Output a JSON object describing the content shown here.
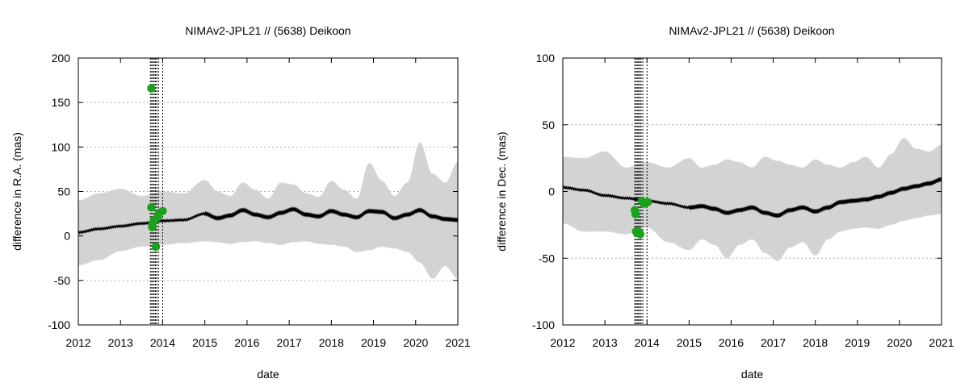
{
  "chart_data": [
    {
      "type": "line",
      "title": "NIMAv2-JPL21 // (5638) Deikoon",
      "xlabel": "date",
      "ylabel": "difference in R.A. (mas)",
      "xlim": [
        2012,
        2021
      ],
      "ylim": [
        -100,
        200
      ],
      "x_ticks": [
        "2012",
        "2013",
        "2014",
        "2015",
        "2016",
        "2017",
        "2018",
        "2019",
        "2020",
        "2021"
      ],
      "y_ticks": [
        "-100",
        "-50",
        "0",
        "50",
        "100",
        "150",
        "200"
      ],
      "grid": "horizontal dotted",
      "colors": {
        "band": "#d3d3d3",
        "line": "#000000",
        "points": "#1aa31a"
      },
      "series": [
        {
          "x": [
            2012.0,
            2012.5,
            2013.0,
            2013.5,
            2014.0,
            2014.5,
            2015.0,
            2015.3,
            2015.6,
            2015.9,
            2016.2,
            2016.5,
            2016.8,
            2017.1,
            2017.4,
            2017.7,
            2018.0,
            2018.3,
            2018.6,
            2018.9,
            2019.2,
            2019.5,
            2019.8,
            2020.1,
            2020.4,
            2020.7,
            2021.0
          ],
          "center": [
            4,
            8,
            11,
            14,
            17,
            18,
            25,
            20,
            23,
            29,
            24,
            21,
            26,
            30,
            24,
            22,
            28,
            24,
            21,
            28,
            27,
            20,
            24,
            29,
            22,
            19,
            18
          ],
          "lower": [
            -33,
            -27,
            -17,
            -12,
            -10,
            -8,
            -6,
            -7,
            -9,
            -7,
            -6,
            -8,
            -10,
            -7,
            -6,
            -9,
            -10,
            -12,
            -18,
            -16,
            -12,
            -14,
            -18,
            -30,
            -48,
            -34,
            -48
          ],
          "upper": [
            40,
            48,
            53,
            45,
            50,
            48,
            63,
            50,
            45,
            60,
            52,
            42,
            60,
            58,
            48,
            44,
            62,
            52,
            42,
            82,
            62,
            45,
            60,
            105,
            70,
            60,
            83
          ]
        }
      ],
      "observations": {
        "x": [
          2013.73,
          2013.73,
          2013.75,
          2013.76,
          2013.8,
          2013.84,
          2013.88,
          2013.92,
          2014.0
        ],
        "y": [
          166,
          32,
          10,
          14,
          18,
          -12,
          21,
          26,
          28
        ]
      },
      "vlines": [
        2013.71,
        2013.74,
        2013.77,
        2013.8,
        2013.83,
        2013.86,
        2013.9,
        2014.0
      ]
    },
    {
      "type": "line",
      "title": "NIMAv2-JPL21 // (5638) Deikoon",
      "xlabel": "date",
      "ylabel": "difference in Dec. (mas)",
      "xlim": [
        2012,
        2021
      ],
      "ylim": [
        -100,
        100
      ],
      "x_ticks": [
        "2012",
        "2013",
        "2014",
        "2015",
        "2016",
        "2017",
        "2018",
        "2019",
        "2020",
        "2021"
      ],
      "y_ticks": [
        "-100",
        "-50",
        "0",
        "50",
        "100"
      ],
      "grid": "horizontal dotted",
      "colors": {
        "band": "#d3d3d3",
        "line": "#000000",
        "points": "#1aa31a"
      },
      "series": [
        {
          "x": [
            2012.0,
            2012.5,
            2013.0,
            2013.5,
            2014.0,
            2014.5,
            2015.0,
            2015.3,
            2015.6,
            2015.9,
            2016.2,
            2016.5,
            2016.8,
            2017.1,
            2017.4,
            2017.7,
            2018.0,
            2018.3,
            2018.6,
            2018.9,
            2019.2,
            2019.5,
            2019.8,
            2020.1,
            2020.4,
            2020.7,
            2021.0
          ],
          "center": [
            3,
            1,
            -3,
            -5,
            -7,
            -9,
            -12,
            -11,
            -13,
            -16,
            -14,
            -12,
            -16,
            -18,
            -14,
            -12,
            -15,
            -12,
            -8,
            -7,
            -6,
            -4,
            -1,
            2,
            4,
            6,
            9
          ],
          "lower": [
            -24,
            -30,
            -30,
            -32,
            -27,
            -38,
            -44,
            -36,
            -40,
            -50,
            -40,
            -36,
            -46,
            -52,
            -42,
            -38,
            -48,
            -36,
            -30,
            -28,
            -27,
            -28,
            -25,
            -22,
            -20,
            -18,
            -17
          ],
          "upper": [
            26,
            25,
            30,
            18,
            22,
            18,
            25,
            18,
            20,
            24,
            22,
            18,
            26,
            23,
            20,
            18,
            24,
            20,
            18,
            22,
            26,
            18,
            28,
            40,
            32,
            30,
            35
          ]
        }
      ],
      "observations": {
        "x": [
          2013.71,
          2013.73,
          2013.74,
          2013.76,
          2013.8,
          2013.84,
          2013.88,
          2013.93,
          2014.02
        ],
        "y": [
          -14,
          -17,
          -30,
          -31,
          -30,
          -32,
          -7,
          -9,
          -8
        ]
      },
      "vlines": [
        2013.71,
        2013.74,
        2013.77,
        2013.8,
        2013.83,
        2013.86,
        2013.9,
        2014.0
      ]
    }
  ]
}
